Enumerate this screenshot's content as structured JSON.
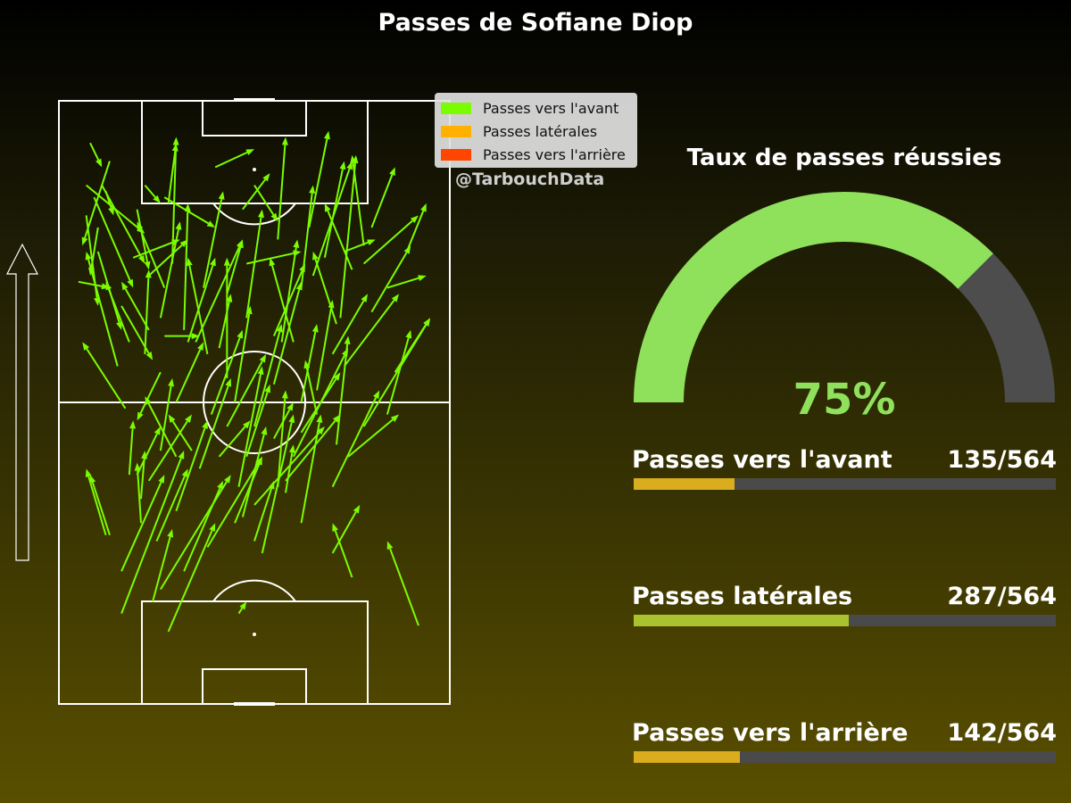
{
  "title": "Passes de Sofiane Diop",
  "watermark": "@TarbouchData",
  "colors": {
    "forward": "#7cfc00",
    "lateral": "#ffb000",
    "backward": "#ff4500",
    "gauge_success": "#8fe05a",
    "gauge_rest": "#4d4d4d",
    "bar_track": "#4a4a4a",
    "bar_fill_forward": "#d9ad1e",
    "bar_fill_lateral": "#aac22d",
    "bar_fill_backward": "#d9ad1e"
  },
  "legend": [
    {
      "label": "Passes vers l'avant",
      "color": "#7cfc00"
    },
    {
      "label": "Passes latérales",
      "color": "#ffb000"
    },
    {
      "label": "Passes vers l'arrière",
      "color": "#ff4500"
    }
  ],
  "gauge": {
    "title": "Taux de passes réussies",
    "value_label": "75%",
    "fraction": 0.75
  },
  "stats": [
    {
      "label": "Passes vers l'avant",
      "count_text": "135/564",
      "numerator": 135,
      "denominator": 564
    },
    {
      "label": "Passes latérales",
      "count_text": "287/564",
      "numerator": 287,
      "denominator": 564
    },
    {
      "label": "Passes vers l'arrière",
      "count_text": "142/564",
      "numerator": 142,
      "denominator": 564
    }
  ],
  "chart_data": {
    "type": "pass-map",
    "direction_arrow": "up",
    "pitch": {
      "length": 100,
      "width": 100
    },
    "passes": [
      [
        13,
        90,
        6,
        76
      ],
      [
        10,
        75,
        16,
        62
      ],
      [
        18,
        60,
        12,
        70
      ],
      [
        26,
        55,
        20,
        47
      ],
      [
        34,
        42,
        28,
        48
      ],
      [
        7,
        81,
        10,
        66
      ],
      [
        20,
        82,
        23,
        72
      ],
      [
        11,
        86,
        22,
        73
      ],
      [
        16,
        66,
        24,
        57
      ],
      [
        5,
        70,
        13,
        69
      ],
      [
        15,
        56,
        7,
        75
      ],
      [
        26,
        64,
        31,
        80
      ],
      [
        27,
        61,
        36,
        61
      ],
      [
        30,
        50,
        37,
        60
      ],
      [
        38,
        58,
        33,
        74
      ],
      [
        45,
        50,
        49,
        66
      ],
      [
        50,
        46,
        57,
        63
      ],
      [
        55,
        53,
        62,
        70
      ],
      [
        60,
        60,
        54,
        74
      ],
      [
        71,
        63,
        65,
        75
      ],
      [
        75,
        72,
        68,
        83
      ],
      [
        68,
        74,
        73,
        90
      ],
      [
        78,
        76,
        75,
        91
      ],
      [
        89,
        75,
        94,
        83
      ],
      [
        86,
        55,
        95,
        64
      ],
      [
        84,
        48,
        90,
        62
      ],
      [
        74,
        41,
        87,
        48
      ],
      [
        70,
        36,
        82,
        52
      ],
      [
        78,
        46,
        95,
        64
      ],
      [
        62,
        50,
        66,
        63
      ],
      [
        58,
        37,
        72,
        48
      ],
      [
        50,
        33,
        68,
        46
      ],
      [
        45,
        30,
        52,
        41
      ],
      [
        41,
        41,
        49,
        47
      ],
      [
        36,
        39,
        44,
        54
      ],
      [
        30,
        32,
        38,
        47
      ],
      [
        25,
        27,
        33,
        39
      ],
      [
        20,
        38,
        26,
        46
      ],
      [
        26,
        19,
        44,
        38
      ],
      [
        28,
        12,
        40,
        30
      ],
      [
        32,
        22,
        42,
        37
      ],
      [
        38,
        26,
        52,
        41
      ],
      [
        47,
        31,
        53,
        46
      ],
      [
        55,
        44,
        60,
        50
      ],
      [
        56,
        36,
        58,
        52
      ],
      [
        62,
        45,
        72,
        55
      ],
      [
        66,
        52,
        70,
        67
      ],
      [
        57,
        60,
        61,
        77
      ],
      [
        43,
        68,
        47,
        77
      ],
      [
        37,
        69,
        42,
        85
      ],
      [
        33,
        60,
        40,
        74
      ],
      [
        48,
        64,
        52,
        82
      ],
      [
        62,
        69,
        65,
        86
      ],
      [
        70,
        58,
        79,
        68
      ],
      [
        72,
        64,
        76,
        91
      ],
      [
        64,
        79,
        69,
        95
      ],
      [
        56,
        77,
        58,
        94
      ],
      [
        47,
        82,
        54,
        88
      ],
      [
        50,
        86,
        56,
        80
      ],
      [
        40,
        89,
        50,
        92
      ],
      [
        28,
        83,
        30,
        93
      ],
      [
        29,
        73,
        30,
        94
      ],
      [
        22,
        86,
        26,
        83
      ],
      [
        12,
        85,
        14,
        81
      ],
      [
        8,
        93,
        11,
        89
      ],
      [
        7,
        86,
        22,
        78
      ],
      [
        9,
        84,
        19,
        69
      ],
      [
        22,
        58,
        23,
        72
      ],
      [
        32,
        62,
        33,
        83
      ],
      [
        43,
        54,
        43,
        74
      ],
      [
        26,
        42,
        29,
        54
      ],
      [
        17,
        49,
        6,
        60
      ],
      [
        13,
        28,
        8,
        38
      ],
      [
        50,
        27,
        55,
        37
      ],
      [
        58,
        35,
        60,
        43
      ],
      [
        70,
        25,
        77,
        33
      ],
      [
        62,
        30,
        67,
        48
      ],
      [
        71,
        43,
        74,
        61
      ],
      [
        52,
        25,
        60,
        48
      ],
      [
        23,
        37,
        34,
        48
      ],
      [
        21,
        30,
        20,
        40
      ],
      [
        21,
        34,
        22,
        42
      ],
      [
        16,
        15,
        32,
        42
      ],
      [
        24,
        17,
        29,
        29
      ],
      [
        12,
        28,
        7,
        39
      ],
      [
        92,
        13,
        84,
        27
      ],
      [
        75,
        21,
        70,
        30
      ],
      [
        46,
        15,
        48,
        17
      ],
      [
        16,
        22,
        27,
        38
      ],
      [
        55,
        61,
        63,
        73
      ],
      [
        66,
        48,
        63,
        57
      ],
      [
        80,
        79,
        86,
        89
      ],
      [
        46,
        36,
        52,
        56
      ],
      [
        39,
        48,
        47,
        62
      ],
      [
        48,
        73,
        62,
        75
      ],
      [
        73,
        75,
        81,
        77
      ],
      [
        65,
        71,
        75,
        90
      ],
      [
        84,
        69,
        94,
        71
      ],
      [
        60,
        41,
        74,
        59
      ],
      [
        48,
        41,
        54,
        53
      ],
      [
        35,
        60,
        47,
        77
      ],
      [
        27,
        69,
        20,
        80
      ],
      [
        23,
        71,
        33,
        77
      ],
      [
        23,
        62,
        16,
        70
      ],
      [
        10,
        79,
        8,
        71
      ],
      [
        19,
        74,
        31,
        77
      ],
      [
        27,
        84,
        40,
        79
      ],
      [
        73,
        56,
        87,
        68
      ],
      [
        80,
        65,
        90,
        76
      ],
      [
        78,
        73,
        92,
        81
      ],
      [
        41,
        59,
        44,
        68
      ],
      [
        18,
        38,
        19,
        47
      ],
      [
        30,
        41,
        22,
        51
      ],
      [
        43,
        46,
        53,
        58
      ]
    ]
  }
}
